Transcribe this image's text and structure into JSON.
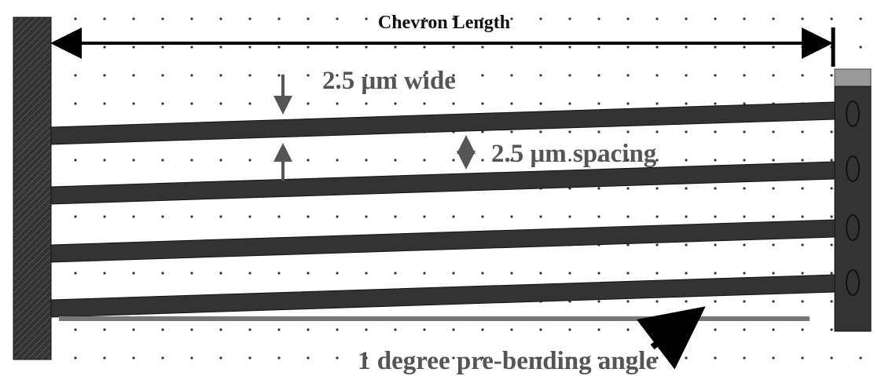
{
  "title": "Chevron Length",
  "labels": {
    "width": "2.5 μm wide",
    "spacing": "2.5 μm spacing",
    "angle": "1 degree pre-bending angle"
  }
}
